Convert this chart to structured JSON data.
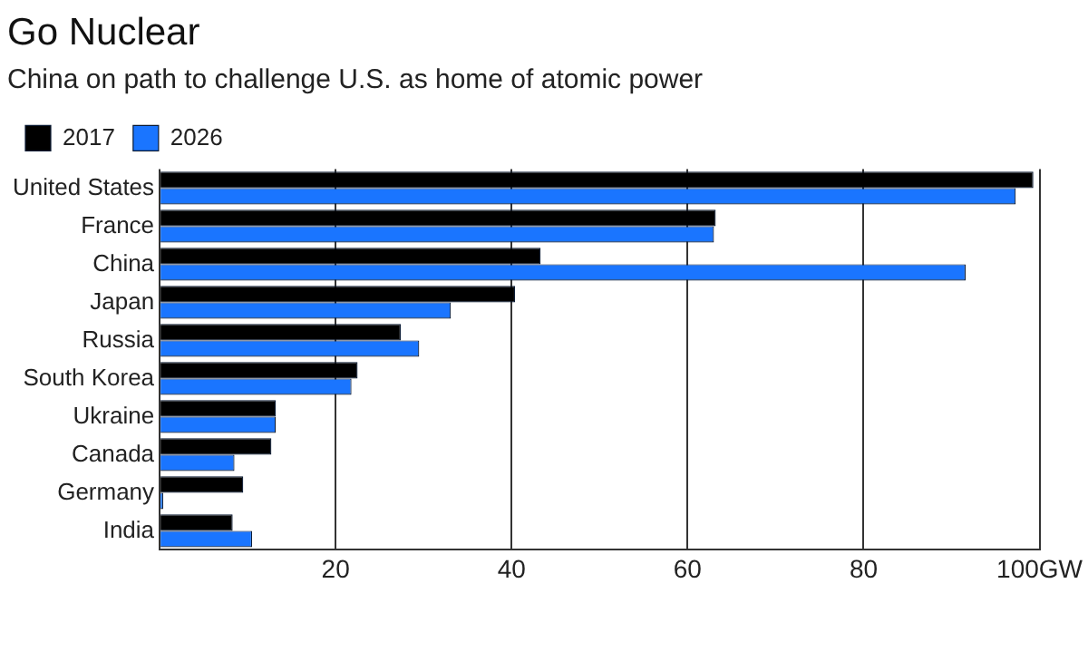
{
  "chart_data": {
    "type": "bar",
    "orientation": "horizontal",
    "title": "Go Nuclear",
    "subtitle": "China on path to challenge U.S. as home of atomic power",
    "categories": [
      "United States",
      "France",
      "China",
      "Japan",
      "Russia",
      "South Korea",
      "Ukraine",
      "Canada",
      "Germany",
      "India"
    ],
    "series": [
      {
        "name": "2017",
        "color": "#000000",
        "values": [
          99.3,
          63.2,
          43.3,
          40.4,
          27.4,
          22.5,
          13.2,
          12.7,
          9.5,
          8.3
        ]
      },
      {
        "name": "2026",
        "color": "#1a75ff",
        "values": [
          97.3,
          63.0,
          91.6,
          33.1,
          29.5,
          21.8,
          13.2,
          8.5,
          0.4,
          10.5
        ]
      }
    ],
    "xlim": [
      0,
      100
    ],
    "xticks": [
      {
        "value": 0,
        "label": null
      },
      20,
      40,
      60,
      80,
      {
        "value": 100,
        "label": "100GW"
      }
    ],
    "grid": "x",
    "legend": "top left"
  }
}
